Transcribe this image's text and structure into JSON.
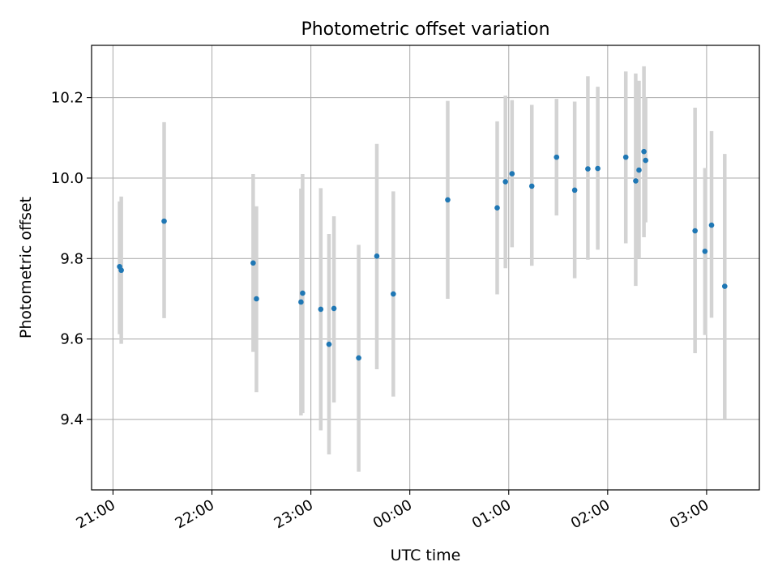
{
  "chart_data": {
    "type": "scatter",
    "title": "Photometric offset variation",
    "xlabel": "UTC time",
    "ylabel": "Photometric offset",
    "x_unit": "UTC time",
    "xlim": [
      "20:47",
      "03:32"
    ],
    "ylim": [
      9.225,
      10.33
    ],
    "grid": true,
    "x_ticks": [
      "21:00",
      "22:00",
      "23:00",
      "00:00",
      "01:00",
      "02:00",
      "03:00"
    ],
    "y_ticks": [
      9.4,
      9.6,
      9.8,
      10.0,
      10.2
    ],
    "y_tick_labels": [
      "9.4",
      "9.6",
      "9.8",
      "10.0",
      "10.2"
    ],
    "colors": {
      "point": "#1f77b4",
      "errorbar": "#d3d3d3",
      "grid": "#b0b0b0"
    },
    "points": [
      {
        "x": "21:04",
        "y": 9.78,
        "lo": 9.612,
        "hi": 9.942
      },
      {
        "x": "21:05",
        "y": 9.771,
        "lo": 9.588,
        "hi": 9.954
      },
      {
        "x": "21:31",
        "y": 9.893,
        "lo": 9.652,
        "hi": 10.139
      },
      {
        "x": "22:25",
        "y": 9.789,
        "lo": 9.568,
        "hi": 10.01
      },
      {
        "x": "22:27",
        "y": 9.7,
        "lo": 9.468,
        "hi": 9.93
      },
      {
        "x": "22:54",
        "y": 9.692,
        "lo": 9.41,
        "hi": 9.974
      },
      {
        "x": "22:55",
        "y": 9.714,
        "lo": 9.416,
        "hi": 10.01
      },
      {
        "x": "23:06",
        "y": 9.674,
        "lo": 9.373,
        "hi": 9.975
      },
      {
        "x": "23:11",
        "y": 9.587,
        "lo": 9.313,
        "hi": 9.861
      },
      {
        "x": "23:14",
        "y": 9.676,
        "lo": 9.442,
        "hi": 9.905
      },
      {
        "x": "23:29",
        "y": 9.553,
        "lo": 9.27,
        "hi": 9.834
      },
      {
        "x": "23:40",
        "y": 9.806,
        "lo": 9.525,
        "hi": 10.085
      },
      {
        "x": "23:50",
        "y": 9.712,
        "lo": 9.457,
        "hi": 9.967
      },
      {
        "x": "00:23",
        "y": 9.946,
        "lo": 9.7,
        "hi": 10.192
      },
      {
        "x": "00:53",
        "y": 9.926,
        "lo": 9.711,
        "hi": 10.141
      },
      {
        "x": "00:58",
        "y": 9.991,
        "lo": 9.776,
        "hi": 10.205
      },
      {
        "x": "01:02",
        "y": 10.011,
        "lo": 9.828,
        "hi": 10.194
      },
      {
        "x": "01:14",
        "y": 9.98,
        "lo": 9.782,
        "hi": 10.182
      },
      {
        "x": "01:29",
        "y": 10.052,
        "lo": 9.907,
        "hi": 10.197
      },
      {
        "x": "01:40",
        "y": 9.97,
        "lo": 9.751,
        "hi": 10.19
      },
      {
        "x": "01:48",
        "y": 10.023,
        "lo": 9.797,
        "hi": 10.253
      },
      {
        "x": "01:54",
        "y": 10.024,
        "lo": 9.822,
        "hi": 10.227
      },
      {
        "x": "02:11",
        "y": 10.052,
        "lo": 9.838,
        "hi": 10.265
      },
      {
        "x": "02:17",
        "y": 9.993,
        "lo": 9.732,
        "hi": 10.26
      },
      {
        "x": "02:19",
        "y": 10.02,
        "lo": 9.8,
        "hi": 10.242
      },
      {
        "x": "02:22",
        "y": 10.066,
        "lo": 9.853,
        "hi": 10.278
      },
      {
        "x": "02:23",
        "y": 10.044,
        "lo": 9.89,
        "hi": 10.2
      },
      {
        "x": "02:53",
        "y": 9.869,
        "lo": 9.565,
        "hi": 10.175
      },
      {
        "x": "02:59",
        "y": 9.818,
        "lo": 9.61,
        "hi": 10.025
      },
      {
        "x": "03:03",
        "y": 9.883,
        "lo": 9.653,
        "hi": 10.117
      },
      {
        "x": "03:11",
        "y": 9.731,
        "lo": 9.4,
        "hi": 10.06
      }
    ]
  }
}
